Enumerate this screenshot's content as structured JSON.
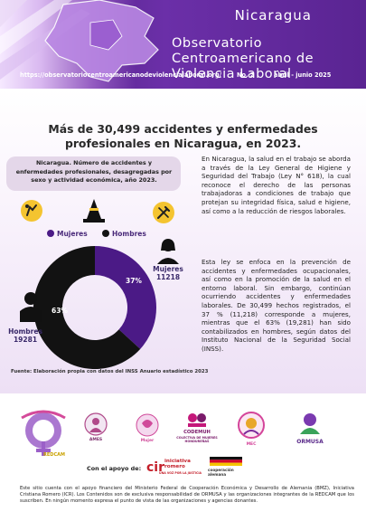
{
  "header": {
    "country": "Nicaragua",
    "observatory_title": "Observatorio Centroamericano de Violencia Laboral",
    "url": "https://observatoriocentroamericanodeviolencialaboral.org/",
    "issue": "No. 2",
    "period": "abril - junio 2025"
  },
  "headline": "Más de 30,499 accidentes y enfermedades profesionales en Nicaragua, en 2023.",
  "chart_box_title": "Nicaragua. Número de accidentes y enfermedades profesionales, desagregadas por sexo y actividad económica, año 2023.",
  "legend": {
    "women": "Mujeres",
    "men": "Hombres"
  },
  "colors": {
    "women": "#4b1a86",
    "men": "#121212",
    "accent": "#6b2fa8"
  },
  "chart_data": {
    "type": "pie",
    "labels": [
      "Mujeres",
      "Hombres"
    ],
    "values": [
      11218,
      19281
    ],
    "percent_labels": [
      "37%",
      "63%"
    ]
  },
  "women_label": {
    "name": "Mujeres",
    "count": "11218"
  },
  "men_label": {
    "name": "Hombres",
    "count": "19281"
  },
  "source": "Fuente: Elaboración propia con datos del  INSS Anuario estadístico 2023",
  "body": {
    "p1": "En Nicaragua, la salud en el trabajo se aborda a través de la Ley General de Higiene y Seguridad del Trabajo (Ley N° 618), la cual reconoce el derecho de las personas trabajadoras a condiciones de trabajo que protejan su integridad física, salud e higiene, así como a la reducción de riesgos laborales.",
    "p2": "Esta ley se enfoca en la prevención de accidentes y enfermedades ocupacionales, así como en la promoción de la salud en el entorno laboral. Sin embargo, continúan ocurriendo accidentes y enfermedades laborales. De 30,499 hechos registrados, el 37 % (11,218) corresponde a mujeres, mientras que el 63% (19,281) han sido contabilizados en hombres, según datos del Instituto Nacional de la Seguridad Social (INSS)."
  },
  "footer": {
    "logos": {
      "redcam": "REDCAM",
      "ames": "AMES",
      "mujer": "Mujer",
      "codemuh": "CODEMUH",
      "codemuh_sub": "COLECTIVA DE MUJERES HONDUREÑAS",
      "mec": "MEC",
      "ormusa": "ORMUSA"
    },
    "support_label": "Con el apoyo de:",
    "icr_name": "iniciativa romero",
    "icr_sub": "UNA VOZ POR LA JUSTICIA",
    "coop_name": "cooperación alemana",
    "disclaimer": "Este sitio cuenta con el apoyo financiero del Ministerio Federal de Cooperación Económica y Desarrollo de Alemania (BMZ), Iniciativa Cristiana Romero (ICR).  Los Contenidos son de exclusiva responsabilidad de ORMUSA y las organizaciones integrantes de la REDCAM que los suscriben. En ningún momento expresa el punto de vista de las organizaciones y agencias donantes."
  }
}
